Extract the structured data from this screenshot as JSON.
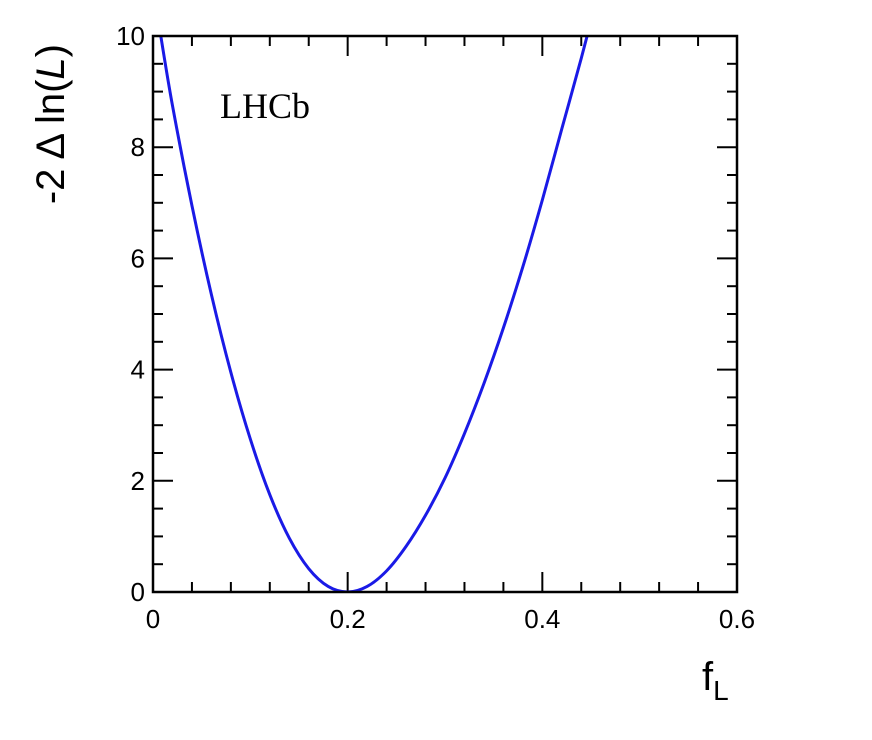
{
  "chart_data": {
    "type": "line",
    "annotation": "LHCb",
    "xlabel": {
      "main": "f",
      "sub": "L"
    },
    "ylabel": {
      "prefix": "-2 Δ ln(",
      "italic": "L",
      "suffix": ")"
    },
    "xlim": [
      0,
      0.6
    ],
    "ylim": [
      0,
      10
    ],
    "x_ticks": [
      0,
      0.2,
      0.4,
      0.6
    ],
    "x_tick_labels": [
      "0",
      "0.2",
      "0.4",
      "0.6"
    ],
    "y_ticks": [
      0,
      2,
      4,
      6,
      8,
      10
    ],
    "y_tick_labels": [
      "0",
      "2",
      "4",
      "6",
      "8",
      "10"
    ],
    "grid": false,
    "series": [
      {
        "color": "#1a1ae6",
        "x": [
          0.008,
          0.02,
          0.04,
          0.06,
          0.08,
          0.1,
          0.12,
          0.14,
          0.16,
          0.18,
          0.2,
          0.22,
          0.24,
          0.26,
          0.28,
          0.3,
          0.32,
          0.34,
          0.36,
          0.38,
          0.4,
          0.42,
          0.44,
          0.46,
          0.468
        ],
        "y": [
          10.0,
          8.75,
          6.95,
          5.35,
          3.95,
          2.75,
          1.75,
          0.97,
          0.42,
          0.1,
          0.0,
          0.1,
          0.38,
          0.82,
          1.38,
          2.05,
          2.85,
          3.75,
          4.75,
          5.85,
          7.05,
          8.33,
          9.6,
          10.95,
          11.5
        ]
      }
    ]
  }
}
